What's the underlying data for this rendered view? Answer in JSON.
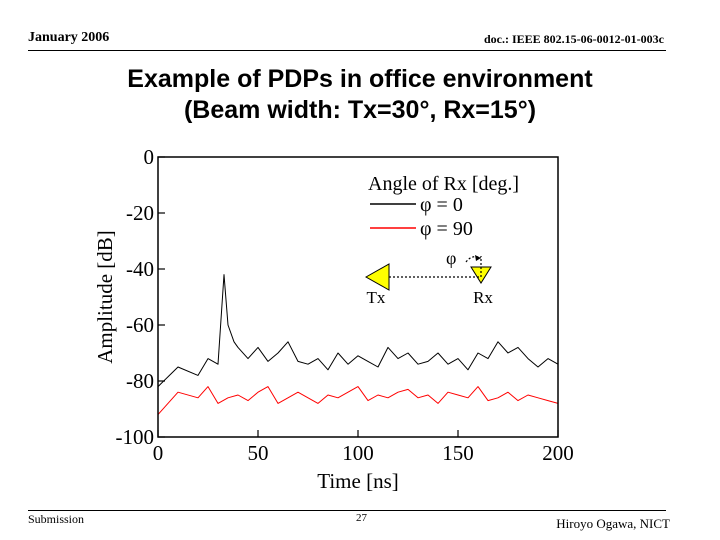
{
  "header": {
    "left": "January 2006",
    "right": "doc.: IEEE 802.15-06-0012-01-003c"
  },
  "title": {
    "line1": "Example of PDPs in office environment",
    "line2": "(Beam width: Tx=30°, Rx=15°)"
  },
  "footer": {
    "left": "Submission",
    "center": "27",
    "right": "Hiroyo Ogawa, NICT"
  },
  "diagram": {
    "phi_symbol": "φ",
    "tx_label": "Tx",
    "rx_label": "Rx",
    "tx_color": "#ffff00",
    "rx_color": "#ffff00"
  },
  "chart_data": {
    "type": "line",
    "xlabel": "Time [ns]",
    "ylabel": "Amplitude [dB]",
    "xlim": [
      0,
      200
    ],
    "ylim": [
      -100,
      0
    ],
    "xticks": [
      0,
      50,
      100,
      150,
      200
    ],
    "yticks": [
      0,
      -20,
      -40,
      -60,
      -80,
      -100
    ],
    "grid": false,
    "legend": {
      "title": "Angle of Rx [deg.]",
      "position": "top-right"
    },
    "series": [
      {
        "name": "φ = 0",
        "color": "#000000",
        "x": [
          0,
          10,
          20,
          25,
          30,
          33,
          35,
          38,
          40,
          45,
          50,
          55,
          60,
          65,
          70,
          75,
          80,
          85,
          90,
          95,
          100,
          105,
          110,
          115,
          120,
          125,
          130,
          135,
          140,
          145,
          150,
          155,
          160,
          165,
          170,
          175,
          180,
          185,
          190,
          195,
          200
        ],
        "y": [
          -82,
          -75,
          -78,
          -72,
          -74,
          -42,
          -60,
          -66,
          -68,
          -72,
          -68,
          -73,
          -70,
          -66,
          -73,
          -74,
          -72,
          -76,
          -70,
          -74,
          -71,
          -73,
          -75,
          -68,
          -72,
          -70,
          -74,
          -73,
          -70,
          -74,
          -72,
          -76,
          -70,
          -72,
          -66,
          -70,
          -68,
          -72,
          -75,
          -72,
          -74
        ]
      },
      {
        "name": "φ = 90",
        "color": "#ff0000",
        "x": [
          0,
          10,
          20,
          25,
          30,
          35,
          40,
          45,
          50,
          55,
          60,
          65,
          70,
          75,
          80,
          85,
          90,
          95,
          100,
          105,
          110,
          115,
          120,
          125,
          130,
          135,
          140,
          145,
          150,
          155,
          160,
          165,
          170,
          175,
          180,
          185,
          190,
          195,
          200
        ],
        "y": [
          -92,
          -84,
          -86,
          -82,
          -88,
          -86,
          -85,
          -87,
          -84,
          -82,
          -88,
          -86,
          -84,
          -86,
          -88,
          -85,
          -86,
          -84,
          -82,
          -87,
          -85,
          -86,
          -84,
          -83,
          -86,
          -85,
          -88,
          -84,
          -85,
          -86,
          -82,
          -87,
          -86,
          -84,
          -87,
          -85,
          -86,
          -87,
          -88
        ]
      }
    ]
  }
}
